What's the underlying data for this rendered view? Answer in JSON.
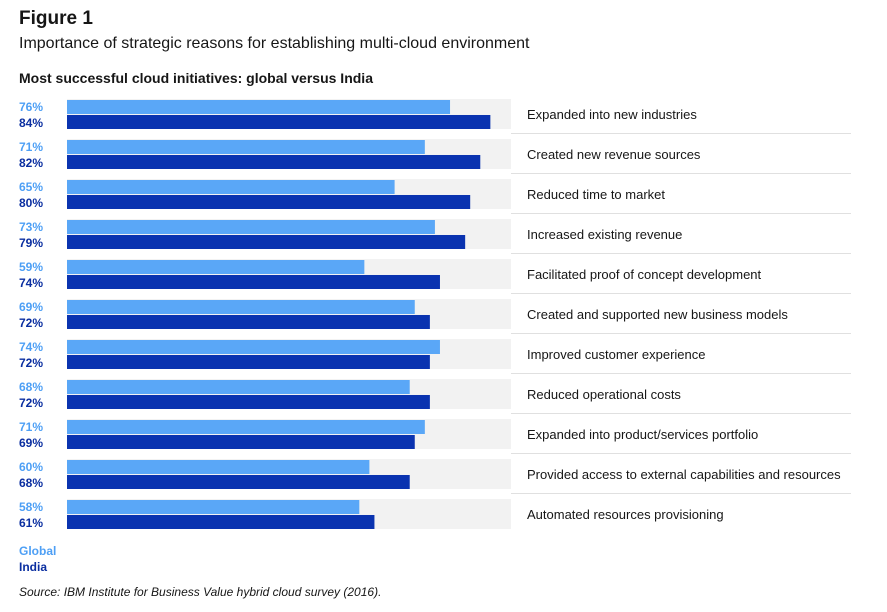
{
  "figure": {
    "label": "Figure 1",
    "subtitle": "Importance of strategic reasons for establishing multi-cloud environment"
  },
  "chart_data": {
    "type": "bar",
    "orientation": "horizontal",
    "title": "Most successful cloud initiatives: global versus India",
    "categories": [
      "Expanded into new industries",
      "Created new revenue sources",
      "Reduced time to market",
      "Increased existing revenue",
      "Facilitated proof of concept development",
      "Created and supported new business models",
      "Improved customer experience",
      "Reduced operational costs",
      "Expanded into product/services portfolio",
      "Provided access to external capabilities and resources",
      "Automated resources provisioning"
    ],
    "series": [
      {
        "name": "Global",
        "color": "#5aa7f7",
        "label_color": "#4d9ff5",
        "values": [
          76,
          71,
          65,
          73,
          59,
          69,
          74,
          68,
          71,
          60,
          58
        ]
      },
      {
        "name": "India",
        "color": "#0a33b0",
        "label_color": "#0a2ea0",
        "values": [
          84,
          82,
          80,
          79,
          74,
          72,
          72,
          72,
          69,
          68,
          61
        ]
      }
    ],
    "value_suffix": "%",
    "xlim": [
      0,
      100
    ],
    "track_color": "#f2f2f2",
    "legend_position": "bottom-left"
  },
  "source": "Source: IBM Institute for Business Value hybrid cloud survey (2016)."
}
